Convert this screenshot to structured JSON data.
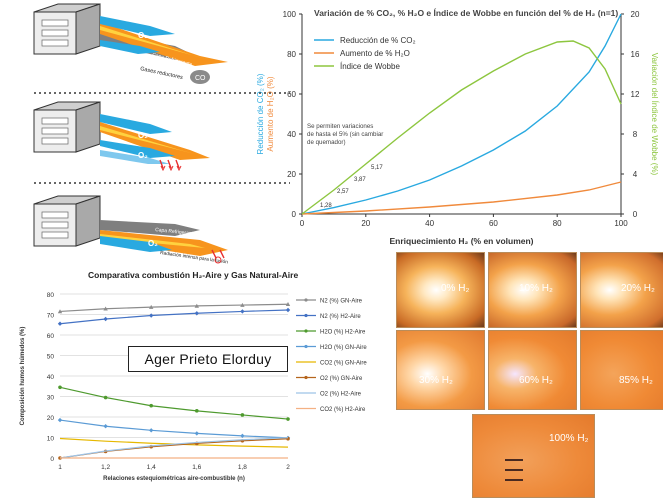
{
  "diagrams": {
    "panel1": {
      "o2": "O₂",
      "capa": "Capa Refrigerante",
      "gases": "Gases reductores",
      "co": "CO"
    },
    "panel2": {
      "o2": "O₂",
      "o2b": "O₂"
    },
    "panel3": {
      "capa": "Capa Refrigerante",
      "radiacion": "Radiación intensa para la fusión",
      "o2": "O₂"
    }
  },
  "photos": [
    {
      "label": "0% H₂"
    },
    {
      "label": "10% H₂"
    },
    {
      "label": "20% H₂"
    },
    {
      "label": "30% H₂"
    },
    {
      "label": "60% H₂"
    },
    {
      "label": "85% H₂"
    },
    {
      "label": "100% H₂"
    }
  ],
  "watermark": "Ager Prieto Elorduy",
  "colors": {
    "blue": "#29a9e0",
    "orange": "#f08a3c",
    "green": "#8dc63f"
  },
  "chart_data": [
    {
      "type": "line",
      "title": "Variación de % CO₂, % H₂O e Índice de Wobbe en función del % de H₂ (n=1)",
      "xlabel": "Enriquecimiento H₂ (% en volumen)",
      "ylabel_left_1": "Reducción de CO₂ (%)",
      "ylabel_left_2": "Aumento de H₂O (%)",
      "ylabel_right": "Variación del Índice de Wobbe (%)",
      "xlim": [
        0,
        100
      ],
      "ylim": [
        0,
        100
      ],
      "ylim_right": [
        0,
        20
      ],
      "x_ticks": [
        0,
        20,
        40,
        60,
        80,
        100
      ],
      "y_ticks": [
        0,
        20,
        40,
        60,
        80,
        100
      ],
      "y_right_ticks": [
        0,
        4,
        8,
        12,
        16,
        20
      ],
      "legend": [
        "Reducción de % CO₂",
        "Aumento de % H₂O",
        "Índice de Wobbe"
      ],
      "annotation": "Se permiten variaciones de hasta el 5% (sin cambiar de quemador)",
      "data_labels": [
        "1,28",
        "2,57",
        "3,87",
        "5,17"
      ],
      "series": [
        {
          "name": "Reducción de % CO₂",
          "axis": "left",
          "color": "#29a9e0",
          "x": [
            0,
            10,
            20,
            30,
            40,
            50,
            60,
            70,
            80,
            90,
            95,
            100
          ],
          "y": [
            0,
            3.2,
            7,
            11.5,
            17,
            24,
            32,
            41.5,
            54,
            71,
            84,
            100
          ]
        },
        {
          "name": "Aumento de % H₂O",
          "axis": "left",
          "color": "#f08a3c",
          "x": [
            0,
            20,
            40,
            60,
            80,
            90,
            100
          ],
          "y": [
            0,
            1.5,
            3.5,
            6,
            9.5,
            12,
            16
          ]
        },
        {
          "name": "Índice de Wobbe",
          "axis": "right",
          "color": "#8dc63f",
          "x": [
            0,
            10,
            20,
            30,
            40,
            50,
            60,
            70,
            80,
            85,
            90,
            95,
            100
          ],
          "y": [
            0,
            2.4,
            5,
            7.6,
            10.1,
            12.4,
            14.3,
            16,
            17.2,
            17.3,
            16.6,
            14.5,
            11
          ]
        }
      ]
    },
    {
      "type": "line",
      "title": "Comparativa combustión H₂-Aire y Gas Natural-Aire",
      "xlabel": "Relaciones estequiométricas aire-combustible (n)",
      "ylabel": "Composición humos húmedos (%)",
      "xlim": [
        1,
        2
      ],
      "ylim": [
        0,
        80
      ],
      "x_ticks": [
        "1",
        "1,2",
        "1,4",
        "1,6",
        "1,8",
        "2"
      ],
      "y_ticks": [
        0,
        10,
        20,
        30,
        40,
        50,
        60,
        70,
        80
      ],
      "x": [
        1,
        1.2,
        1.4,
        1.6,
        1.8,
        2
      ],
      "series": [
        {
          "name": "N2 (%) GN-Aire",
          "color": "#8c8c8c",
          "marker": "triangle",
          "values": [
            71.5,
            72.8,
            73.6,
            74.2,
            74.6,
            75
          ]
        },
        {
          "name": "N2 (%) H2-Aire",
          "color": "#4472c4",
          "marker": "diamond",
          "values": [
            65.5,
            67.8,
            69.5,
            70.6,
            71.5,
            72.2
          ]
        },
        {
          "name": "H2O (%) H2-Aire",
          "color": "#4e9a2e",
          "marker": "circle",
          "values": [
            34.5,
            29.5,
            25.5,
            23,
            21,
            19
          ]
        },
        {
          "name": "H2O (%) GN-Aire",
          "color": "#5b9bd5",
          "marker": "diamond",
          "values": [
            18.5,
            15.5,
            13.5,
            12,
            10.8,
            9.8
          ]
        },
        {
          "name": "CO2 (%) GN-Aire",
          "color": "#e6b800",
          "marker": "none",
          "values": [
            9.5,
            8.2,
            7.2,
            6.4,
            5.8,
            5.3
          ]
        },
        {
          "name": "O2 (%) GN-Aire",
          "color": "#b5651d",
          "marker": "circle",
          "values": [
            0,
            3.2,
            5.5,
            7.1,
            8.4,
            9.4
          ]
        },
        {
          "name": "O2 (%) H2-Aire",
          "color": "#9dc3e6",
          "marker": "none",
          "values": [
            0,
            3.4,
            5.9,
            7.6,
            8.9,
            9.9
          ]
        },
        {
          "name": "CO2 (%) H2-Aire",
          "color": "#f4b183",
          "marker": "none",
          "values": [
            0,
            0,
            0,
            0,
            0,
            0
          ]
        }
      ]
    }
  ]
}
